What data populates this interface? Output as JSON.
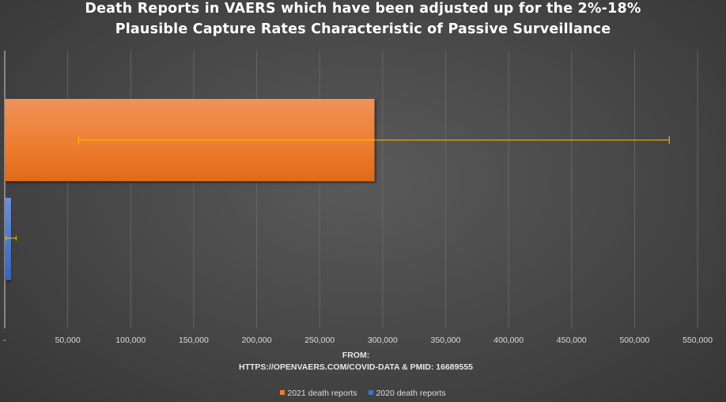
{
  "chart_data": {
    "type": "bar",
    "orientation": "horizontal",
    "title_lines": [
      "Death Reports in VAERS which have been adjusted up for the 2%-18%",
      "Plausible Capture Rates Characteristic of Passive Surveillance"
    ],
    "xlim": [
      0,
      560000
    ],
    "x_ticks": [
      0,
      50000,
      100000,
      150000,
      200000,
      250000,
      300000,
      350000,
      400000,
      450000,
      500000,
      550000
    ],
    "x_tick_labels": [
      "-",
      "50,000",
      "100,000",
      "150,000",
      "200,000",
      "250,000",
      "300,000",
      "350,000",
      "400,000",
      "450,000",
      "500,000",
      "550,000"
    ],
    "grid": true,
    "legend_position": "bottom",
    "series": [
      {
        "name": "2021 death reports",
        "value": 293500,
        "error_low": 58500,
        "error_high": 527500,
        "color": "#ed7d31"
      },
      {
        "name": "2020 death reports",
        "value": 5000,
        "error_low": 1000,
        "error_high": 9000,
        "color": "#4472c4"
      }
    ],
    "error_bar_color": "#ffc000",
    "source_lines": [
      "FROM:",
      "HTTPS://OPENVAERS.COM/COVID-DATA & PMID: 16689555"
    ]
  }
}
